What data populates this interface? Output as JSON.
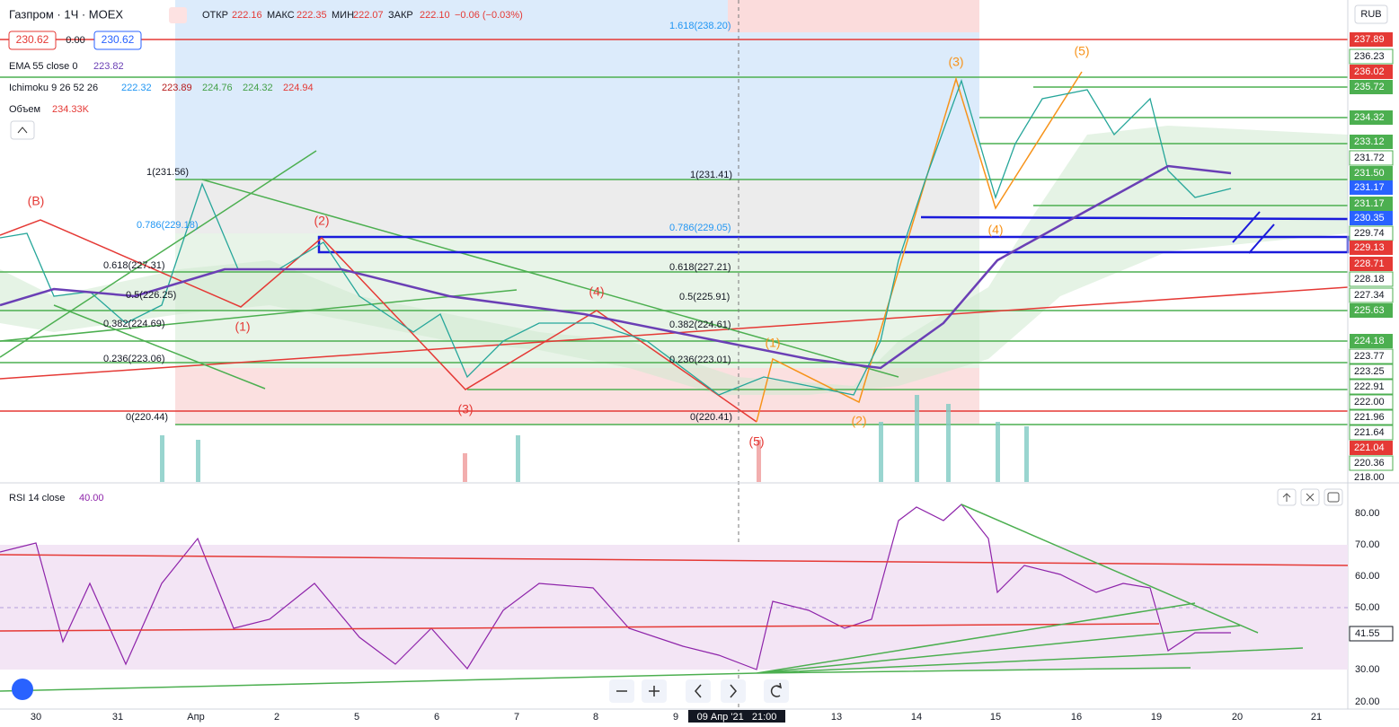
{
  "header": {
    "symbol": "Газпром · 1Ч · MOEX",
    "ohlc": [
      {
        "label": "ОТКР",
        "value": "222.16"
      },
      {
        "label": "МАКС",
        "value": "222.35"
      },
      {
        "label": "МИН",
        "value": "222.07"
      },
      {
        "label": "ЗАКР",
        "value": "222.10"
      }
    ],
    "change": "−0.06 (−0.03%)",
    "bid": "230.62",
    "spread": "0.00",
    "ask": "230.62"
  },
  "indicators": [
    {
      "name": "EMA 55 close 0",
      "values": [
        "223.82"
      ]
    },
    {
      "name": "Ichimoku 9 26 52 26",
      "values": [
        "222.32",
        "223.89",
        "224.76",
        "224.32",
        "224.94"
      ]
    },
    {
      "name": "Объем",
      "values": [
        "234.33K"
      ]
    }
  ],
  "currency": "RUB",
  "price_axis": [
    "237.89",
    "236.23",
    "236.02",
    "235.72",
    "234.32",
    "233.12",
    "231.72",
    "231.50",
    "231.17",
    "231.17",
    "230.35",
    "229.74",
    "229.13",
    "228.71",
    "228.18",
    "227.34",
    "225.63",
    "224.18",
    "223.77",
    "223.25",
    "222.91",
    "222.00",
    "221.96",
    "221.64",
    "221.04",
    "220.36",
    "218.00"
  ],
  "fib_left": [
    "1(231.56)",
    "0.786(229.18)",
    "0.618(227.31)",
    "0.5(226.25)",
    "0.382(224.69)",
    "0.236(223.06)",
    "0(220.44)"
  ],
  "fib_right": [
    "1.618(238.20)",
    "1(231.41)",
    "0.786(229.05)",
    "0.618(227.21)",
    "0.5(225.91)",
    "0.382(224.61)",
    "0.236(223.01)",
    "0(220.41)"
  ],
  "waves_red": [
    "(B)",
    "(1)",
    "(2)",
    "(3)",
    "(4)",
    "(5)"
  ],
  "waves_orange": [
    "(1)",
    "(2)",
    "(3)",
    "(4)",
    "(5)"
  ],
  "rsi": {
    "name": "RSI 14 close",
    "value": "40.00",
    "axis": [
      "80.00",
      "70.00",
      "60.00",
      "50.00",
      "30.00",
      "20.00"
    ],
    "current": "41.55"
  },
  "x_axis": [
    "30",
    "31",
    "Апр",
    "2",
    "5",
    "6",
    "7",
    "8",
    "9",
    "09 Апр '21   21:00",
    "13",
    "14",
    "15",
    "16",
    "19",
    "20",
    "21"
  ]
}
